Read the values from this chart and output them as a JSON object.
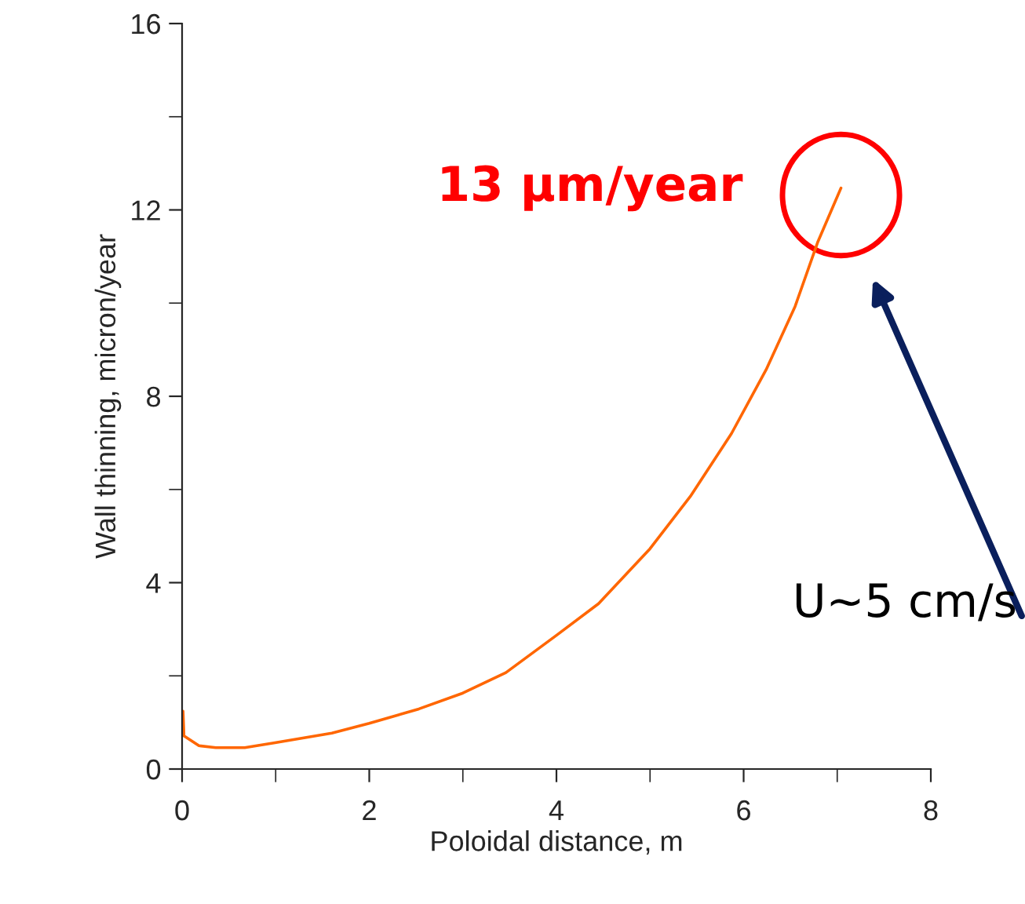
{
  "chart_data": {
    "type": "line",
    "xlabel": "Poloidal distance, m",
    "ylabel": "Wall thinning, micron/year",
    "xlim": [
      0,
      8
    ],
    "xticks": [
      0,
      2,
      4,
      6,
      8
    ],
    "ylim": [
      0,
      16
    ],
    "yticks": [
      0,
      4,
      8,
      12,
      16
    ],
    "grid": false,
    "marker": "none",
    "line_style": "solid",
    "series": [
      {
        "color": "#ff6600",
        "x": [
          0.01,
          0.02,
          0.18,
          0.36,
          0.67,
          0.98,
          1.6,
          2.0,
          2.53,
          3.0,
          3.46,
          4.0,
          4.45,
          5.0,
          5.43,
          5.87,
          6.24,
          6.55,
          6.79,
          7.04
        ],
        "values": [
          1.24,
          0.71,
          0.5,
          0.46,
          0.46,
          0.56,
          0.77,
          0.98,
          1.29,
          1.63,
          2.07,
          2.87,
          3.55,
          4.73,
          5.85,
          7.2,
          8.57,
          9.93,
          11.3,
          12.47
        ]
      }
    ],
    "annotations": [
      {
        "text": "13 µm/year",
        "x": 7.04,
        "y": 12.47
      },
      "U~5 cm/s"
    ]
  }
}
